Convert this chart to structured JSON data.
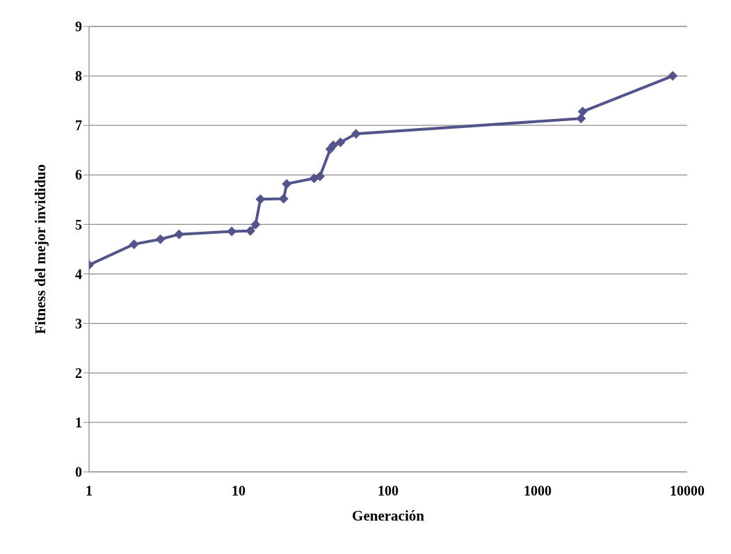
{
  "chart_data": {
    "type": "line",
    "xlabel": "Generación",
    "ylabel": "Fitness del mejor invididuo",
    "x": [
      1,
      2,
      3,
      4,
      9,
      12,
      13,
      14,
      20,
      21,
      32,
      35,
      41,
      43,
      48,
      61,
      1950,
      2000,
      8000
    ],
    "series": [
      {
        "color": "#53548a",
        "values": [
          4.18,
          4.6,
          4.7,
          4.8,
          4.86,
          4.87,
          5.0,
          5.51,
          5.52,
          5.82,
          5.93,
          5.97,
          6.52,
          6.6,
          6.66,
          6.83,
          7.14,
          7.28,
          8.0
        ]
      }
    ],
    "log": "x",
    "xlim": [
      1,
      10000
    ],
    "xticks": [
      1,
      10,
      100,
      1000,
      10000
    ],
    "ylim": [
      0,
      9
    ],
    "yticks": [
      0,
      1,
      2,
      3,
      4,
      5,
      6,
      7,
      8,
      9
    ],
    "grid": "y",
    "legend": false,
    "marker": "diamond",
    "line_style": "solid"
  }
}
